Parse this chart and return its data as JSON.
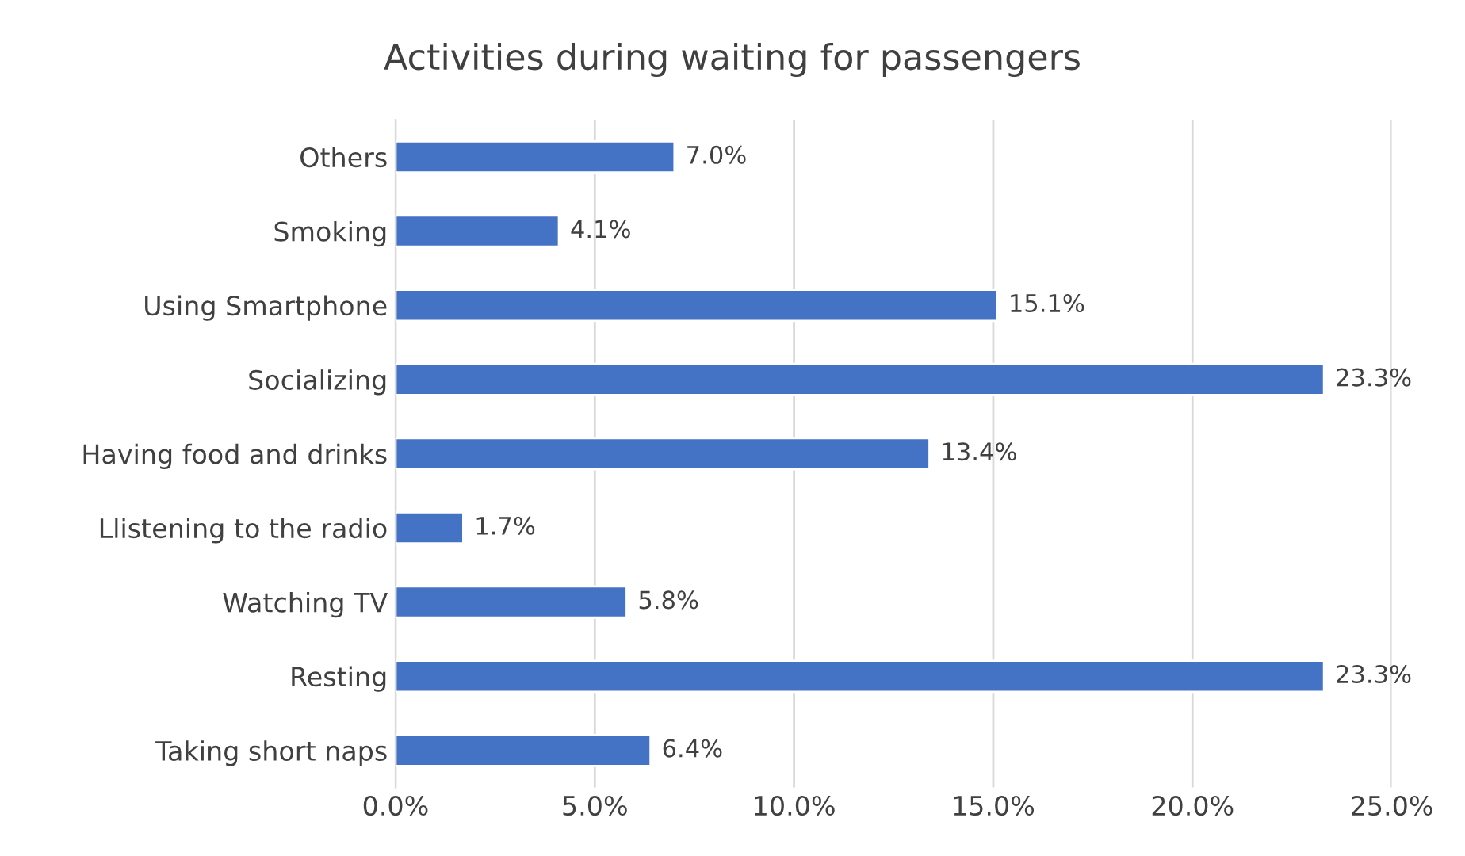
{
  "chart_data": {
    "type": "bar",
    "orientation": "horizontal",
    "title": "Activities during waiting for passengers",
    "categories": [
      "Others",
      "Smoking",
      "Using Smartphone",
      "Socializing",
      "Having food and drinks",
      "Llistening to the radio",
      "Watching TV",
      "Resting",
      "Taking short naps"
    ],
    "values": [
      7.0,
      4.1,
      15.1,
      23.3,
      13.4,
      1.7,
      5.8,
      23.3,
      6.4
    ],
    "value_labels": [
      "7.0%",
      "4.1%",
      "15.1%",
      "23.3%",
      "13.4%",
      "1.7%",
      "5.8%",
      "23.3%",
      "6.4%"
    ],
    "color": "#4472c4",
    "xlim": [
      0,
      25
    ],
    "xticks": [
      {
        "value": 0,
        "label": "0.0%"
      },
      {
        "value": 5,
        "label": "5.0%"
      },
      {
        "value": 10,
        "label": "10.0%"
      },
      {
        "value": 15,
        "label": "15.0%"
      },
      {
        "value": 20,
        "label": "20.0%"
      },
      {
        "value": 25,
        "label": "25.0%"
      }
    ],
    "grid": "x"
  }
}
